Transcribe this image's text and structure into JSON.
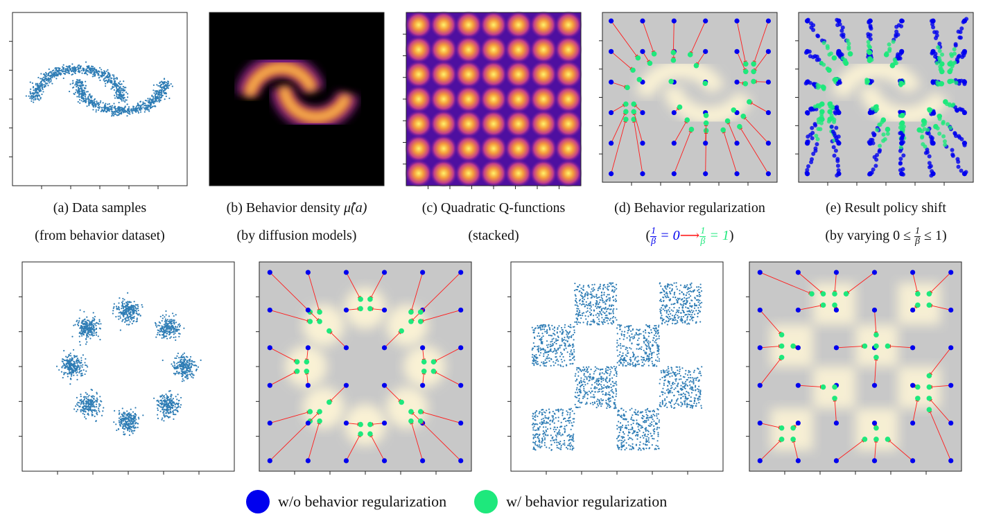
{
  "colors": {
    "blue": "#0000ee",
    "green": "#1ee87c",
    "scatter": "#2f7db5",
    "arrow": "#ff1a1a",
    "gray": "#c8c8c8"
  },
  "captions": {
    "a": {
      "line1": "(a) Data samples",
      "line2": "(from behavior dataset)"
    },
    "b": {
      "line1": "(b) Behavior density",
      "math": "μ̂(a)",
      "line2": "(by diffusion models)"
    },
    "c": {
      "line1": "(c) Quadratic Q-functions",
      "line2": "(stacked)"
    },
    "d": {
      "line1": "(d) Behavior regularization",
      "eq_left": "= 0",
      "eq_right": "= 1",
      "num": "1",
      "den": "β"
    },
    "e": {
      "line1": "(e) Result policy shift",
      "line2_prefix": "(by varying 0 ≤",
      "line2_suffix": "≤ 1)",
      "num": "1",
      "den": "β"
    }
  },
  "legend": {
    "blue_label": "w/o behavior regularization",
    "green_label": "w/ behavior regularization"
  },
  "chart_data": [
    {
      "type": "scatter",
      "id": "a",
      "dataset": "two moons",
      "title": "",
      "xlabel": "",
      "ylabel": ""
    },
    {
      "type": "heatmap",
      "id": "b",
      "dataset": "two moons density",
      "colormap": "inferno"
    },
    {
      "type": "heatmap",
      "id": "c",
      "grid": [
        7,
        7
      ],
      "colormap": "plasma"
    },
    {
      "type": "scatter",
      "id": "d",
      "grid": [
        6,
        6
      ],
      "dataset": "two moons"
    },
    {
      "type": "scatter",
      "id": "e",
      "grid": [
        6,
        6
      ],
      "dataset": "two moons"
    },
    {
      "type": "scatter",
      "id": "f",
      "dataset": "8 gaussians"
    },
    {
      "type": "scatter",
      "id": "g",
      "grid": [
        6,
        6
      ],
      "dataset": "8 gaussians"
    },
    {
      "type": "scatter",
      "id": "h",
      "dataset": "checkerboard"
    },
    {
      "type": "scatter",
      "id": "i",
      "grid": [
        6,
        6
      ],
      "dataset": "checkerboard"
    }
  ]
}
